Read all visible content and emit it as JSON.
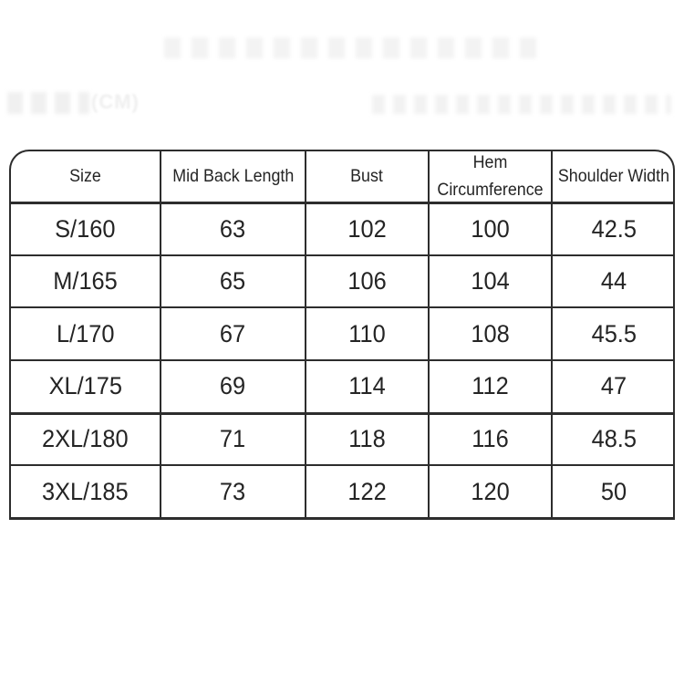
{
  "chart_data": {
    "type": "table",
    "title": "",
    "columns": [
      "Size",
      "Mid Back Length",
      "Bust",
      "Hem Circumference",
      "Shoulder Width"
    ],
    "rows": [
      [
        "S/160",
        "63",
        "102",
        "100",
        "42.5"
      ],
      [
        "M/165",
        "65",
        "106",
        "104",
        "44"
      ],
      [
        "L/170",
        "67",
        "110",
        "108",
        "45.5"
      ],
      [
        "XL/175",
        "69",
        "114",
        "112",
        "47"
      ],
      [
        "2XL/180",
        "71",
        "118",
        "116",
        "48.5"
      ],
      [
        "3XL/185",
        "73",
        "122",
        "120",
        "50"
      ]
    ]
  },
  "watermark": {
    "unit_label": "(CM)"
  },
  "colors": {
    "border": "#2d2d2d",
    "text": "#242424",
    "background": "#ffffff",
    "watermark": "#f2f2f2"
  }
}
